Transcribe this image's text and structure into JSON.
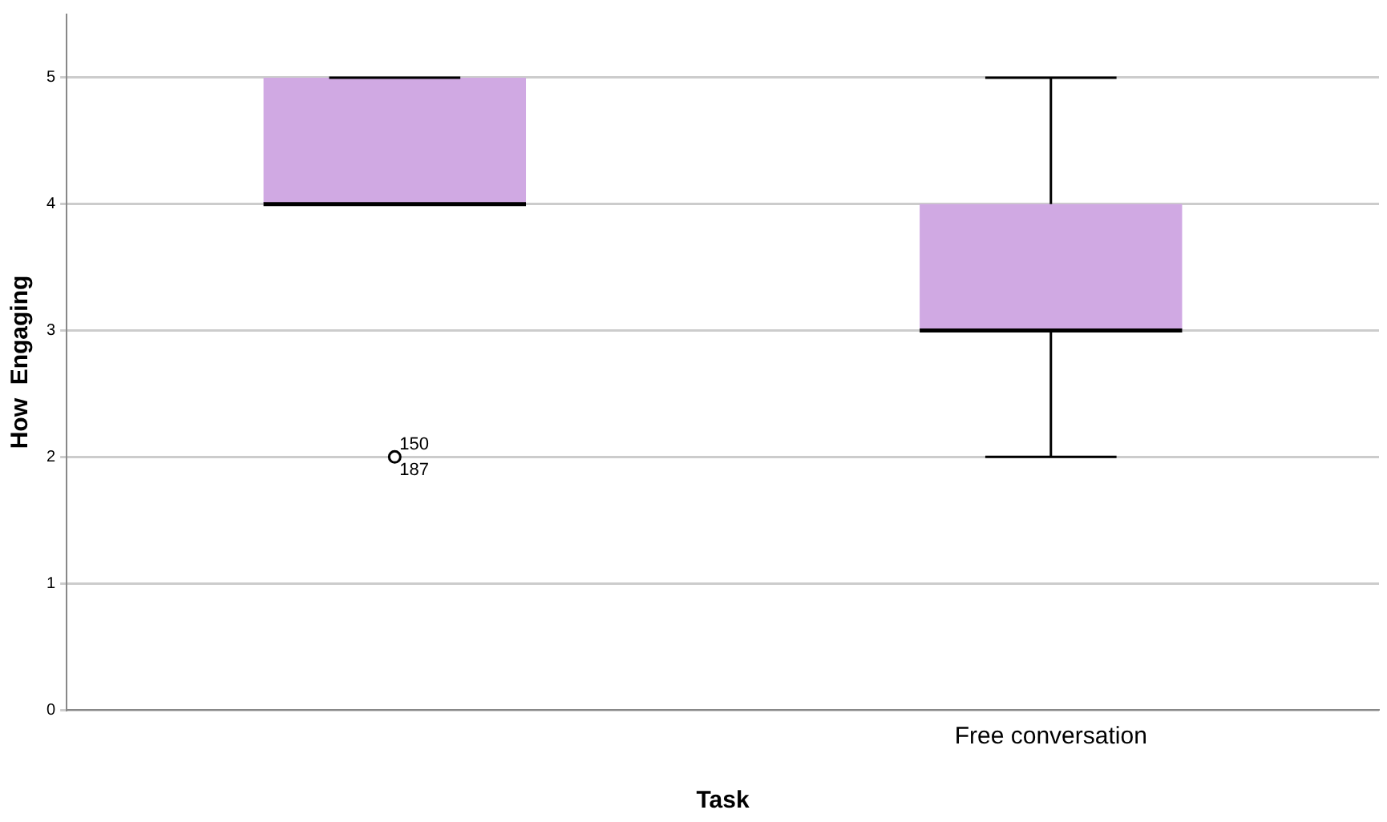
{
  "chart_data": {
    "type": "box",
    "xlabel": "Task",
    "ylabel": "How  Engaging",
    "categories": [
      null,
      "Free conversation"
    ],
    "boxes": [
      {
        "low": 4,
        "q1": 4,
        "median": 4,
        "q3": 5,
        "high": 5,
        "outliers": [
          2
        ]
      },
      {
        "low": 2,
        "q1": 3,
        "median": 3,
        "q3": 4,
        "high": 5
      }
    ],
    "color": "#d0a9e3",
    "ylim": [
      0,
      5.5
    ],
    "yticks": [
      0,
      1,
      2,
      3,
      4,
      5
    ],
    "grid": "y",
    "annotations": [
      "150",
      "187"
    ]
  }
}
